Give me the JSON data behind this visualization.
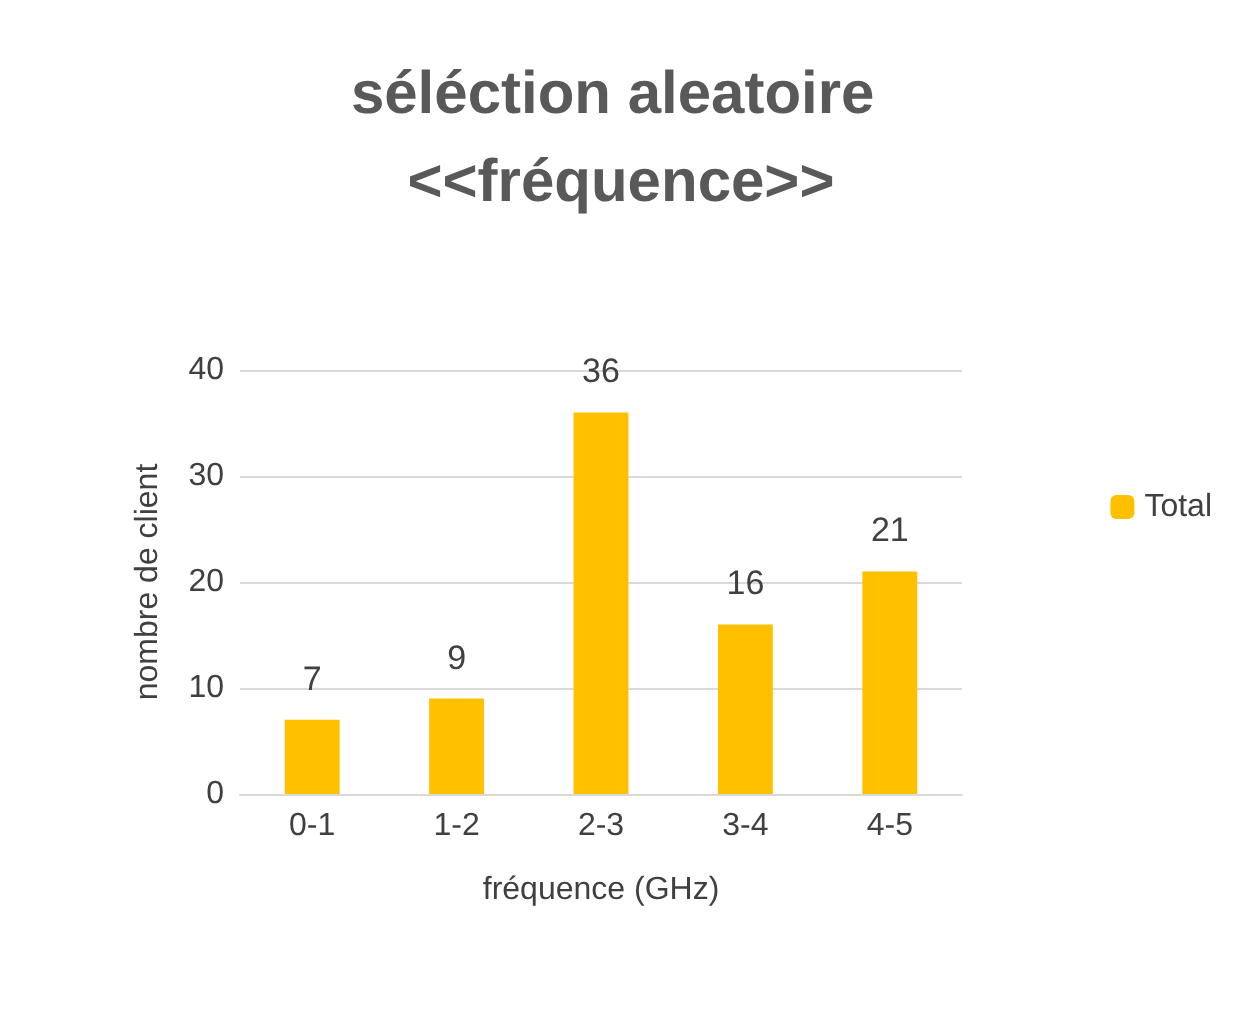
{
  "chart_data": {
    "type": "bar",
    "title": "séléction aleatoire <<fréquence>>",
    "xlabel": "fréquence (GHz)",
    "ylabel": "nombre de client",
    "categories": [
      "0-1",
      "1-2",
      "2-3",
      "3-4",
      "4-5"
    ],
    "series": [
      {
        "name": "Total",
        "color": "#ffc000",
        "values": [
          7,
          9,
          36,
          16,
          21
        ]
      }
    ],
    "ylim": [
      0,
      40
    ],
    "yticks": [
      0,
      10,
      20,
      30,
      40
    ],
    "grid": "y",
    "legend": "right",
    "data_labels": true
  }
}
